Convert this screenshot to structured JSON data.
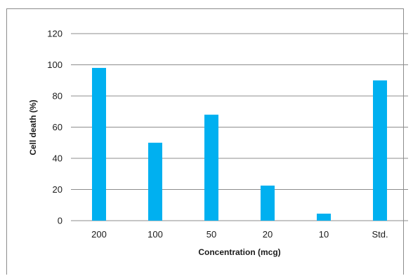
{
  "chart_data": {
    "type": "bar",
    "categories": [
      "200",
      "100",
      "50",
      "20",
      "10",
      "Std."
    ],
    "values": [
      98,
      50,
      68,
      22.5,
      4.5,
      90
    ],
    "title": "",
    "xlabel": "Concentration (mcg)",
    "ylabel": "Cell death (%)",
    "ylim": [
      0,
      120
    ],
    "yticks": [
      0,
      20,
      40,
      60,
      80,
      100,
      120
    ],
    "grid": true,
    "legend": "none",
    "bar_color": "#00B0F0",
    "grid_color": "#8c8c8c"
  }
}
